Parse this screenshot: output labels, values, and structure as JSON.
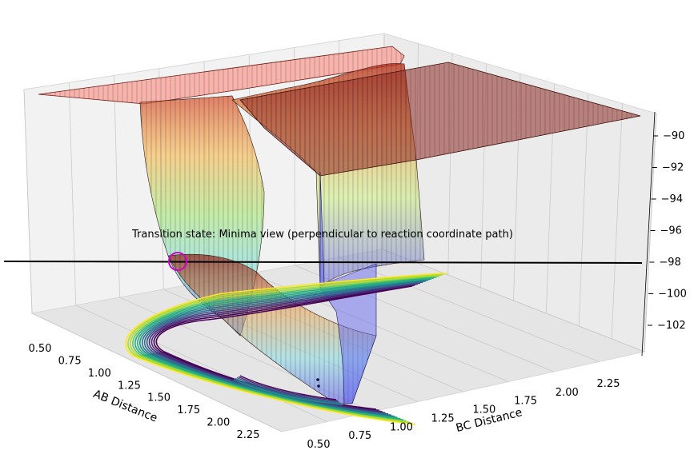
{
  "chart_data": {
    "type": "surface3d",
    "title": "",
    "annotation": "Transition state: Minima view  (perpendicular to reaction coordinate path)",
    "xlabel": "AB Distance",
    "ylabel": "BC Distance",
    "zlabel": "",
    "x_ticks": [
      "0.50",
      "0.75",
      "1.00",
      "1.25",
      "1.50",
      "1.75",
      "2.00",
      "2.25"
    ],
    "y_ticks": [
      "0.50",
      "0.75",
      "1.00",
      "1.25",
      "1.50",
      "1.75",
      "2.00",
      "2.25"
    ],
    "z_ticks": [
      "−90",
      "−92",
      "−94",
      "−96",
      "−98",
      "−100",
      "−102"
    ],
    "xlim": [
      0.5,
      2.4
    ],
    "ylim": [
      0.5,
      2.4
    ],
    "zlim": [
      -103.5,
      -89.5
    ],
    "grid": true,
    "colormap": "jet (surface), viridis (contours)",
    "transition_state_marker": {
      "x": 0.6,
      "y": 0.6,
      "z": -98,
      "color": "#cc00cc",
      "shape": "circle"
    },
    "horizontal_line": {
      "z": -98,
      "color": "#000000"
    },
    "minima_points": [
      {
        "x": 2.3,
        "y": 0.78
      },
      {
        "x": 2.3,
        "y": 0.75
      }
    ]
  }
}
